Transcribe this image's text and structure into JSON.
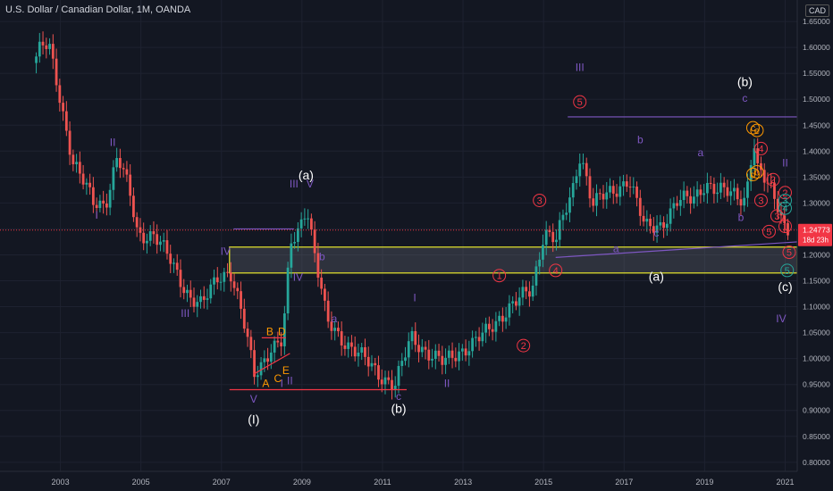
{
  "header": {
    "symbol_line": "U.S. Dollar / Canadian Dollar, 1M, OANDA",
    "currency_button": "CAD"
  },
  "price_badge": {
    "price": "1.24773",
    "countdown": "18d 23h"
  },
  "colors": {
    "background": "#131722",
    "up": "#26a69a",
    "down": "#ef5350",
    "wave_purple": "#7e57c2",
    "wave_red": "#f23645",
    "wave_orange": "#ff9800",
    "wave_teal": "#26a69a",
    "zone_border": "#e8e82c"
  },
  "chart_data": {
    "type": "candlestick",
    "xlim": [
      2001.5,
      2021.3
    ],
    "ylim": [
      0.8,
      1.7
    ],
    "x_ticks": [
      "2003",
      "2005",
      "2007",
      "2009",
      "2011",
      "2013",
      "2015",
      "2017",
      "2019",
      "2021"
    ],
    "y_ticks": [
      "1.65000",
      "1.60000",
      "1.55000",
      "1.50000",
      "1.45000",
      "1.40000",
      "1.35000",
      "1.30000",
      "1.25000",
      "1.20000",
      "1.15000",
      "1.10000",
      "1.05000",
      "1.00000",
      "0.95000",
      "0.90000",
      "0.85000",
      "0.80000"
    ],
    "y_tick_values": [
      1.65,
      1.6,
      1.55,
      1.5,
      1.45,
      1.4,
      1.35,
      1.3,
      1.25,
      1.2,
      1.15,
      1.1,
      1.05,
      1.0,
      0.95,
      0.9,
      0.85,
      0.8
    ],
    "price_path": [
      [
        2002.4,
        1.57
      ],
      [
        2002.6,
        1.6
      ],
      [
        2002.8,
        1.6
      ],
      [
        2003.0,
        1.53
      ],
      [
        2003.4,
        1.38
      ],
      [
        2003.9,
        1.3
      ],
      [
        2004.2,
        1.3
      ],
      [
        2004.5,
        1.39
      ],
      [
        2004.8,
        1.32
      ],
      [
        2005.0,
        1.24
      ],
      [
        2005.4,
        1.24
      ],
      [
        2005.8,
        1.19
      ],
      [
        2006.3,
        1.12
      ],
      [
        2006.6,
        1.1
      ],
      [
        2007.0,
        1.16
      ],
      [
        2007.3,
        1.17
      ],
      [
        2007.6,
        1.08
      ],
      [
        2007.9,
        0.97
      ],
      [
        2008.3,
        1.02
      ],
      [
        2008.6,
        1.03
      ],
      [
        2008.8,
        1.22
      ],
      [
        2009.0,
        1.25
      ],
      [
        2009.2,
        1.3
      ],
      [
        2009.4,
        1.2
      ],
      [
        2009.7,
        1.07
      ],
      [
        2010.2,
        1.03
      ],
      [
        2010.6,
        1.0
      ],
      [
        2011.0,
        0.97
      ],
      [
        2011.4,
        0.95
      ],
      [
        2011.8,
        1.04
      ],
      [
        2012.1,
        1.02
      ],
      [
        2012.6,
        0.99
      ],
      [
        2013.1,
        1.02
      ],
      [
        2013.7,
        1.05
      ],
      [
        2014.2,
        1.1
      ],
      [
        2014.8,
        1.13
      ],
      [
        2015.1,
        1.25
      ],
      [
        2015.4,
        1.23
      ],
      [
        2015.8,
        1.32
      ],
      [
        2016.0,
        1.4
      ],
      [
        2016.3,
        1.3
      ],
      [
        2016.8,
        1.32
      ],
      [
        2017.2,
        1.35
      ],
      [
        2017.6,
        1.25
      ],
      [
        2018.0,
        1.26
      ],
      [
        2018.4,
        1.3
      ],
      [
        2018.8,
        1.31
      ],
      [
        2019.1,
        1.34
      ],
      [
        2019.4,
        1.32
      ],
      [
        2019.8,
        1.32
      ],
      [
        2020.1,
        1.31
      ],
      [
        2020.3,
        1.42
      ],
      [
        2020.4,
        1.36
      ],
      [
        2020.7,
        1.33
      ],
      [
        2020.9,
        1.3
      ],
      [
        2021.1,
        1.25
      ]
    ],
    "support_zone": {
      "y_top": 1.215,
      "y_bottom": 1.165,
      "x_start": 2007.2,
      "x_end": 2021.3
    },
    "lines": [
      {
        "x1": 2007.2,
        "y1": 0.94,
        "x2": 2011.6,
        "y2": 0.94,
        "color": "#f23645"
      },
      {
        "x1": 2015.6,
        "y1": 1.466,
        "x2": 2021.3,
        "y2": 1.466,
        "color": "#7e57c2"
      },
      {
        "x1": 2015.3,
        "y1": 1.195,
        "x2": 2021.3,
        "y2": 1.225,
        "color": "#7e57c2"
      },
      {
        "x1": 2001.5,
        "y1": 1.24773,
        "x2": 2021.3,
        "y2": 1.24773,
        "color": "#f23645",
        "dash": true
      },
      {
        "x1": 2007.3,
        "y1": 1.25,
        "x2": 2008.8,
        "y2": 1.25,
        "color": "#7e57c2"
      },
      {
        "x1": 2008.0,
        "y1": 1.04,
        "x2": 2008.6,
        "y2": 1.04,
        "color": "#f23645"
      },
      {
        "x1": 2007.8,
        "y1": 0.97,
        "x2": 2008.7,
        "y2": 1.01,
        "color": "#f23645"
      }
    ],
    "annotations": [
      {
        "text": "II",
        "x": 2004.3,
        "y": 1.41,
        "color": "#7e57c2"
      },
      {
        "text": "I",
        "x": 2003.9,
        "y": 1.27,
        "color": "#7e57c2"
      },
      {
        "text": "III",
        "x": 2006.1,
        "y": 1.08,
        "color": "#7e57c2"
      },
      {
        "text": "IV",
        "x": 2007.1,
        "y": 1.2,
        "color": "#7e57c2"
      },
      {
        "text": "V",
        "x": 2007.8,
        "y": 0.915,
        "color": "#7e57c2"
      },
      {
        "text": "(I)",
        "x": 2007.8,
        "y": 0.875,
        "color": "#ffffff",
        "big": true
      },
      {
        "text": "(a)",
        "x": 2009.1,
        "y": 1.345,
        "color": "#ffffff",
        "big": true
      },
      {
        "text": "III",
        "x": 2008.8,
        "y": 1.33,
        "color": "#7e57c2"
      },
      {
        "text": "V",
        "x": 2009.2,
        "y": 1.33,
        "color": "#7e57c2"
      },
      {
        "text": "IV",
        "x": 2008.9,
        "y": 1.15,
        "color": "#7e57c2"
      },
      {
        "text": "b",
        "x": 2009.5,
        "y": 1.19,
        "color": "#7e57c2"
      },
      {
        "text": "a",
        "x": 2009.8,
        "y": 1.07,
        "color": "#7e57c2"
      },
      {
        "text": "I",
        "x": 2008.5,
        "y": 0.945,
        "color": "#7e57c2"
      },
      {
        "text": "II",
        "x": 2008.7,
        "y": 0.95,
        "color": "#7e57c2"
      },
      {
        "text": "A",
        "x": 2008.1,
        "y": 0.945,
        "color": "#ff9800"
      },
      {
        "text": "B",
        "x": 2008.2,
        "y": 1.045,
        "color": "#ff9800"
      },
      {
        "text": "C",
        "x": 2008.4,
        "y": 0.955,
        "color": "#ff9800"
      },
      {
        "text": "D",
        "x": 2008.5,
        "y": 1.045,
        "color": "#ff9800"
      },
      {
        "text": "E",
        "x": 2008.6,
        "y": 0.97,
        "color": "#ff9800"
      },
      {
        "text": "c",
        "x": 2011.4,
        "y": 0.92,
        "color": "#7e57c2"
      },
      {
        "text": "(b)",
        "x": 2011.4,
        "y": 0.895,
        "color": "#ffffff",
        "big": true
      },
      {
        "text": "I",
        "x": 2011.8,
        "y": 1.11,
        "color": "#7e57c2"
      },
      {
        "text": "II",
        "x": 2012.6,
        "y": 0.945,
        "color": "#7e57c2"
      },
      {
        "text": "1",
        "x": 2013.9,
        "y": 1.16,
        "color": "#f23645",
        "circle": true
      },
      {
        "text": "2",
        "x": 2014.5,
        "y": 1.025,
        "color": "#f23645",
        "circle": true
      },
      {
        "text": "3",
        "x": 2014.9,
        "y": 1.305,
        "color": "#f23645",
        "circle": true
      },
      {
        "text": "4",
        "x": 2015.3,
        "y": 1.17,
        "color": "#f23645",
        "circle": true
      },
      {
        "text": "5",
        "x": 2015.9,
        "y": 1.495,
        "color": "#f23645",
        "circle": true
      },
      {
        "text": "III",
        "x": 2015.9,
        "y": 1.555,
        "color": "#7e57c2"
      },
      {
        "text": "b",
        "x": 2017.4,
        "y": 1.415,
        "color": "#7e57c2"
      },
      {
        "text": "a",
        "x": 2016.8,
        "y": 1.205,
        "color": "#7e57c2"
      },
      {
        "text": "c",
        "x": 2017.8,
        "y": 1.235,
        "color": "#7e57c2"
      },
      {
        "text": "(a)",
        "x": 2017.8,
        "y": 1.15,
        "color": "#ffffff",
        "big": true
      },
      {
        "text": "a",
        "x": 2018.9,
        "y": 1.39,
        "color": "#7e57c2"
      },
      {
        "text": "b",
        "x": 2019.9,
        "y": 1.265,
        "color": "#7e57c2"
      },
      {
        "text": "c",
        "x": 2020.0,
        "y": 1.495,
        "color": "#7e57c2"
      },
      {
        "text": "(b)",
        "x": 2020.0,
        "y": 1.525,
        "color": "#ffffff",
        "big": true
      },
      {
        "text": "IV",
        "x": 2020.9,
        "y": 1.07,
        "color": "#7e57c2"
      },
      {
        "text": "(c)",
        "x": 2021.0,
        "y": 1.13,
        "color": "#ffffff",
        "big": true
      },
      {
        "text": "II",
        "x": 2021.0,
        "y": 1.37,
        "color": "#7e57c2"
      },
      {
        "text": "c",
        "x": 2020.2,
        "y": 1.445,
        "color": "#ff9800",
        "circle": true
      },
      {
        "text": "e",
        "x": 2020.3,
        "y": 1.44,
        "color": "#ff9800",
        "circle": true
      },
      {
        "text": "4",
        "x": 2020.4,
        "y": 1.405,
        "color": "#f23645",
        "circle": true
      },
      {
        "text": "d",
        "x": 2020.2,
        "y": 1.355,
        "color": "#ff9800",
        "circle": true
      },
      {
        "text": "b",
        "x": 2020.3,
        "y": 1.36,
        "color": "#ff9800",
        "circle": true
      },
      {
        "text": "2",
        "x": 2020.7,
        "y": 1.345,
        "color": "#f23645",
        "circle": true
      },
      {
        "text": "3",
        "x": 2020.4,
        "y": 1.305,
        "color": "#f23645",
        "circle": true
      },
      {
        "text": "3",
        "x": 2020.8,
        "y": 1.275,
        "color": "#f23645",
        "circle": true
      },
      {
        "text": "5",
        "x": 2020.6,
        "y": 1.245,
        "color": "#f23645",
        "circle": true
      },
      {
        "text": "2",
        "x": 2021.0,
        "y": 1.32,
        "color": "#f23645",
        "circle": true
      },
      {
        "text": "1",
        "x": 2021.0,
        "y": 1.255,
        "color": "#f23645",
        "circle": true
      },
      {
        "text": "5",
        "x": 2021.1,
        "y": 1.205,
        "color": "#f23645",
        "circle": true
      },
      {
        "text": "5",
        "x": 2021.05,
        "y": 1.17,
        "color": "#26a69a",
        "circle": true
      },
      {
        "text": "3",
        "x": 2021.0,
        "y": 1.305,
        "color": "#26a69a",
        "circle": true
      },
      {
        "text": "4",
        "x": 2021.0,
        "y": 1.29,
        "color": "#26a69a",
        "circle": true
      }
    ]
  }
}
